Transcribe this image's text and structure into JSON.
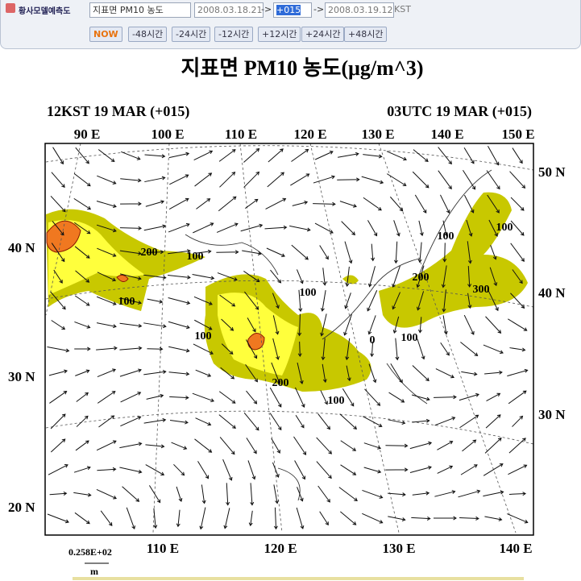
{
  "toolbar": {
    "label": "황사모델예측도",
    "variable": "지표면 PM10 농도",
    "init_time": "2008.03.18.21",
    "arrow": "->",
    "forecast_hour": "+015",
    "valid_time": "2008.03.19.12",
    "timezone": "KST",
    "buttons": [
      "NOW",
      "-48시간",
      "-24시간",
      "-12시간",
      "+12시간",
      "+24시간",
      "+48시간"
    ]
  },
  "map": {
    "title": "지표면  PM10  농도(μg/m^3)",
    "left_subtitle": "12KST 19 MAR (+015)",
    "right_subtitle": "03UTC 19 MAR (+015)",
    "top_lon_labels": [
      "90 E",
      "100 E",
      "110 E",
      "120 E",
      "130 E",
      "140 E",
      "150 E"
    ],
    "bottom_lon_labels": [
      "110 E",
      "120 E",
      "130 E",
      "140 E"
    ],
    "left_lat_labels": [
      "40 N",
      "30 N",
      "20 N"
    ],
    "right_lat_labels": [
      "50 N",
      "40 N",
      "30 N"
    ],
    "contour_labels": [
      "200",
      "100",
      "100",
      "100",
      "200",
      "100",
      "100",
      "0",
      "100",
      "200",
      "100",
      "100",
      "300"
    ],
    "vector_scale": "0.258E+02",
    "vector_unit": "m"
  }
}
